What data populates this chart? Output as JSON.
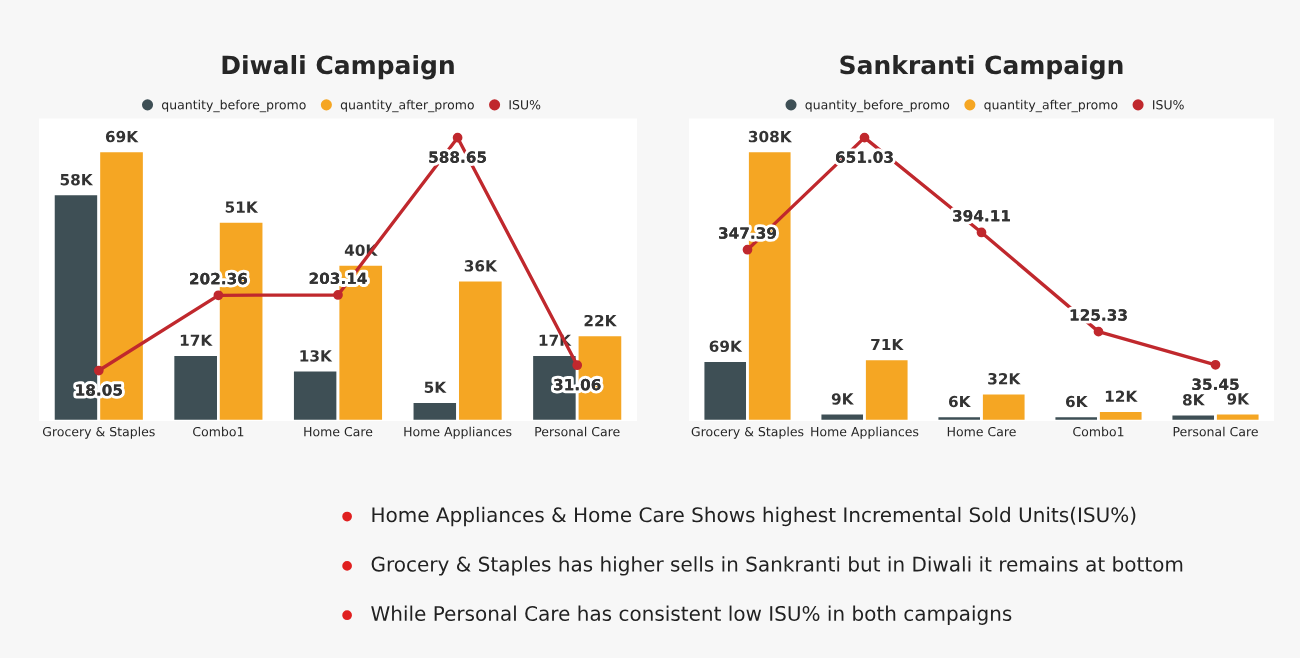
{
  "chart_data": [
    {
      "type": "bar",
      "title": "Diwali Campaign",
      "categories": [
        "Grocery & Staples",
        "Combo1",
        "Home Care",
        "Home Appliances",
        "Personal Care"
      ],
      "series": [
        {
          "name": "quantity_before_promo",
          "color": "#3e4f55",
          "values": [
            58000,
            17000,
            13000,
            5000,
            17000
          ],
          "value_labels": [
            "58K",
            "17K",
            "13K",
            "5K",
            "17K"
          ]
        },
        {
          "name": "quantity_after_promo",
          "color": "#f5a623",
          "values": [
            69000,
            51000,
            40000,
            36000,
            22000
          ],
          "value_labels": [
            "69K",
            "51K",
            "40K",
            "36K",
            "22K"
          ]
        },
        {
          "name": "ISU%",
          "type": "line",
          "axis": "y2",
          "color": "#c0282d",
          "marker": "circle",
          "values": [
            18.05,
            202.36,
            203.14,
            588.65,
            31.06
          ],
          "data_labels": true
        }
      ],
      "legend": "top",
      "tick_labels": "x",
      "grid": false,
      "annotations": [
        "Home Appliances & Home Care Shows highest Incremental Sold Units(ISU%)",
        "Grocery & Staples has higher sells in Sankranti but in Diwali it remains at bottom",
        "While Personal Care has consistent low ISU% in both campaigns"
      ]
    },
    {
      "type": "bar",
      "title": "Sankranti Campaign",
      "categories": [
        "Grocery & Staples",
        "Home Appliances",
        "Home Care",
        "Combo1",
        "Personal Care"
      ],
      "series": [
        {
          "name": "quantity_before_promo",
          "color": "#3e4f55",
          "values": [
            69000,
            9000,
            6000,
            6000,
            8000
          ],
          "value_labels": [
            "69K",
            "9K",
            "6K",
            "6K",
            "8K"
          ]
        },
        {
          "name": "quantity_after_promo",
          "color": "#f5a623",
          "values": [
            308000,
            71000,
            32000,
            12000,
            9000
          ],
          "value_labels": [
            "308K",
            "71K",
            "32K",
            "12K",
            "9K"
          ]
        },
        {
          "name": "ISU%",
          "type": "line",
          "axis": "y2",
          "color": "#c0282d",
          "marker": "circle",
          "values": [
            347.39,
            651.03,
            394.11,
            125.33,
            35.45
          ],
          "data_labels": true
        }
      ],
      "legend": "top",
      "tick_labels": "x",
      "grid": false
    }
  ]
}
